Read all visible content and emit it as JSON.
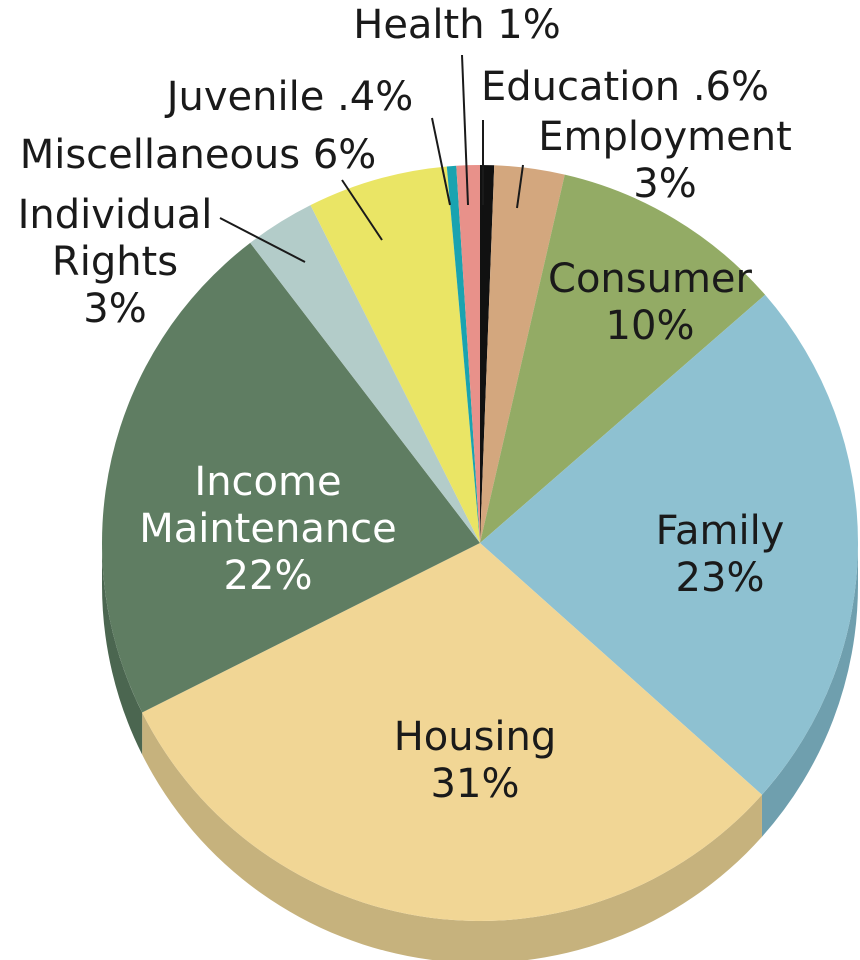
{
  "chart_data": {
    "type": "pie",
    "start": "12 o'clock",
    "direction": "clockwise",
    "slices": [
      {
        "key": "education",
        "label_lines": [
          "Education .6%"
        ],
        "value": 0.6,
        "color": "#111111",
        "side_color": "#111111",
        "label_color": "#1a1a1a"
      },
      {
        "key": "employment",
        "label_lines": [
          "Employment",
          "3%"
        ],
        "value": 3,
        "color": "#D3A77E",
        "side_color": "#b8916a",
        "label_color": "#1a1a1a"
      },
      {
        "key": "consumer",
        "label_lines": [
          "Consumer",
          "10%"
        ],
        "value": 10,
        "color": "#93AB65",
        "side_color": "#7b9153",
        "label_color": "#1a1a1a"
      },
      {
        "key": "family",
        "label_lines": [
          "Family",
          "23%"
        ],
        "value": 23,
        "color": "#8EC1D1",
        "side_color": "#6f9fae",
        "label_color": "#1a1a1a"
      },
      {
        "key": "housing",
        "label_lines": [
          "Housing",
          "31%"
        ],
        "value": 31,
        "color": "#F1D695",
        "side_color": "#C6B27D",
        "label_color": "#1a1a1a"
      },
      {
        "key": "income-maintenance",
        "label_lines": [
          "Income",
          "Maintenance",
          "22%"
        ],
        "value": 22,
        "color": "#5F7D62",
        "side_color": "#4B6650",
        "label_color": "#ffffff"
      },
      {
        "key": "individual-rights",
        "label_lines": [
          "Individual",
          "Rights",
          "3%"
        ],
        "value": 3,
        "color": "#B3CCC9",
        "side_color": "#98b0ad",
        "label_color": "#1a1a1a"
      },
      {
        "key": "miscellaneous",
        "label_lines": [
          "Miscellaneous 6%"
        ],
        "value": 6,
        "color": "#EAE565",
        "side_color": "#c8c455",
        "label_color": "#1a1a1a"
      },
      {
        "key": "juvenile",
        "label_lines": [
          "Juvenile .4%"
        ],
        "value": 0.4,
        "color": "#1AA3B0",
        "side_color": "#158894",
        "label_color": "#1a1a1a"
      },
      {
        "key": "health",
        "label_lines": [
          "Health 1%"
        ],
        "value": 1,
        "color": "#E8918A",
        "side_color": "#c77a74",
        "label_color": "#1a1a1a"
      }
    ]
  }
}
